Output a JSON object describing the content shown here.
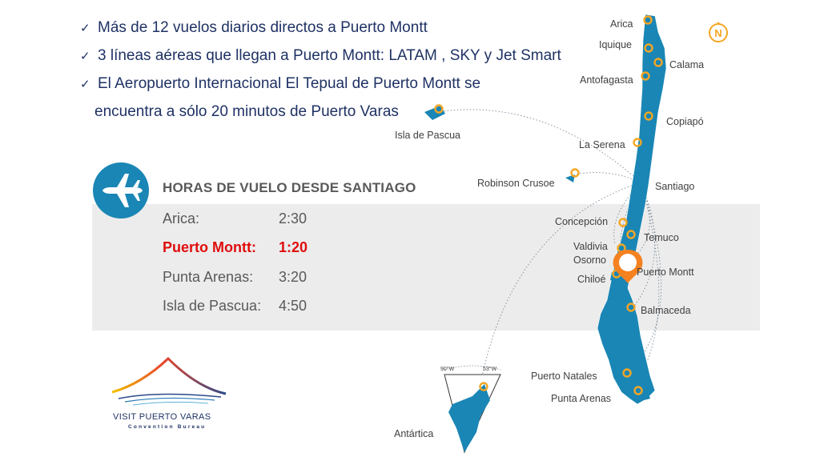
{
  "bullets": {
    "item1": "Más de 12 vuelos diarios directos a Puerto Montt",
    "item2": "3 líneas aéreas que llegan a Puerto Montt: LATAM , SKY y Jet Smart",
    "item3_line1": "El Aeropuerto Internacional El Tepual de Puerto Montt se",
    "item3_line2": "encuentra a sólo 20 minutos de Puerto Varas",
    "check": "✓"
  },
  "flight_table": {
    "title": "HORAS DE VUELO DESDE SANTIAGO",
    "rows": [
      {
        "city": "Arica:",
        "time": "2:30",
        "highlight": false
      },
      {
        "city": "Puerto Montt:",
        "time": "1:20",
        "highlight": true
      },
      {
        "city": "Punta Arenas:",
        "time": "3:20",
        "highlight": false
      },
      {
        "city": "Isla de Pascua:",
        "time": "4:50",
        "highlight": false
      }
    ]
  },
  "map": {
    "compass": "N",
    "labels": {
      "arica": "Arica",
      "iquique": "Iquique",
      "calama": "Calama",
      "antofagasta": "Antofagasta",
      "copiapo": "Copiapó",
      "la_serena": "La Serena",
      "santiago": "Santiago",
      "robinson_crusoe": "Robinson Crusoe",
      "isla_de_pascua": "Isla de Pascua",
      "concepcion": "Concepción",
      "temuco": "Temuco",
      "valdivia": "Valdivia",
      "osorno": "Osorno",
      "puerto_montt": "Puerto Montt",
      "chiloe": "Chiloé",
      "balmaceda": "Balmaceda",
      "puerto_natales": "Puerto Natales",
      "punta_arenas": "Punta Arenas",
      "antartica": "Antártica",
      "lon_90w": "90°W",
      "lon_53w": "53°W"
    }
  },
  "logo": {
    "name": "VISIT PUERTO VARAS",
    "tagline": "Convention Bureau"
  },
  "colors": {
    "bullet_text": "#1f3264",
    "map_fill": "#1a86b5",
    "pin": "#f5a623",
    "highlight": "#e00d0d",
    "band": "#ececec"
  }
}
